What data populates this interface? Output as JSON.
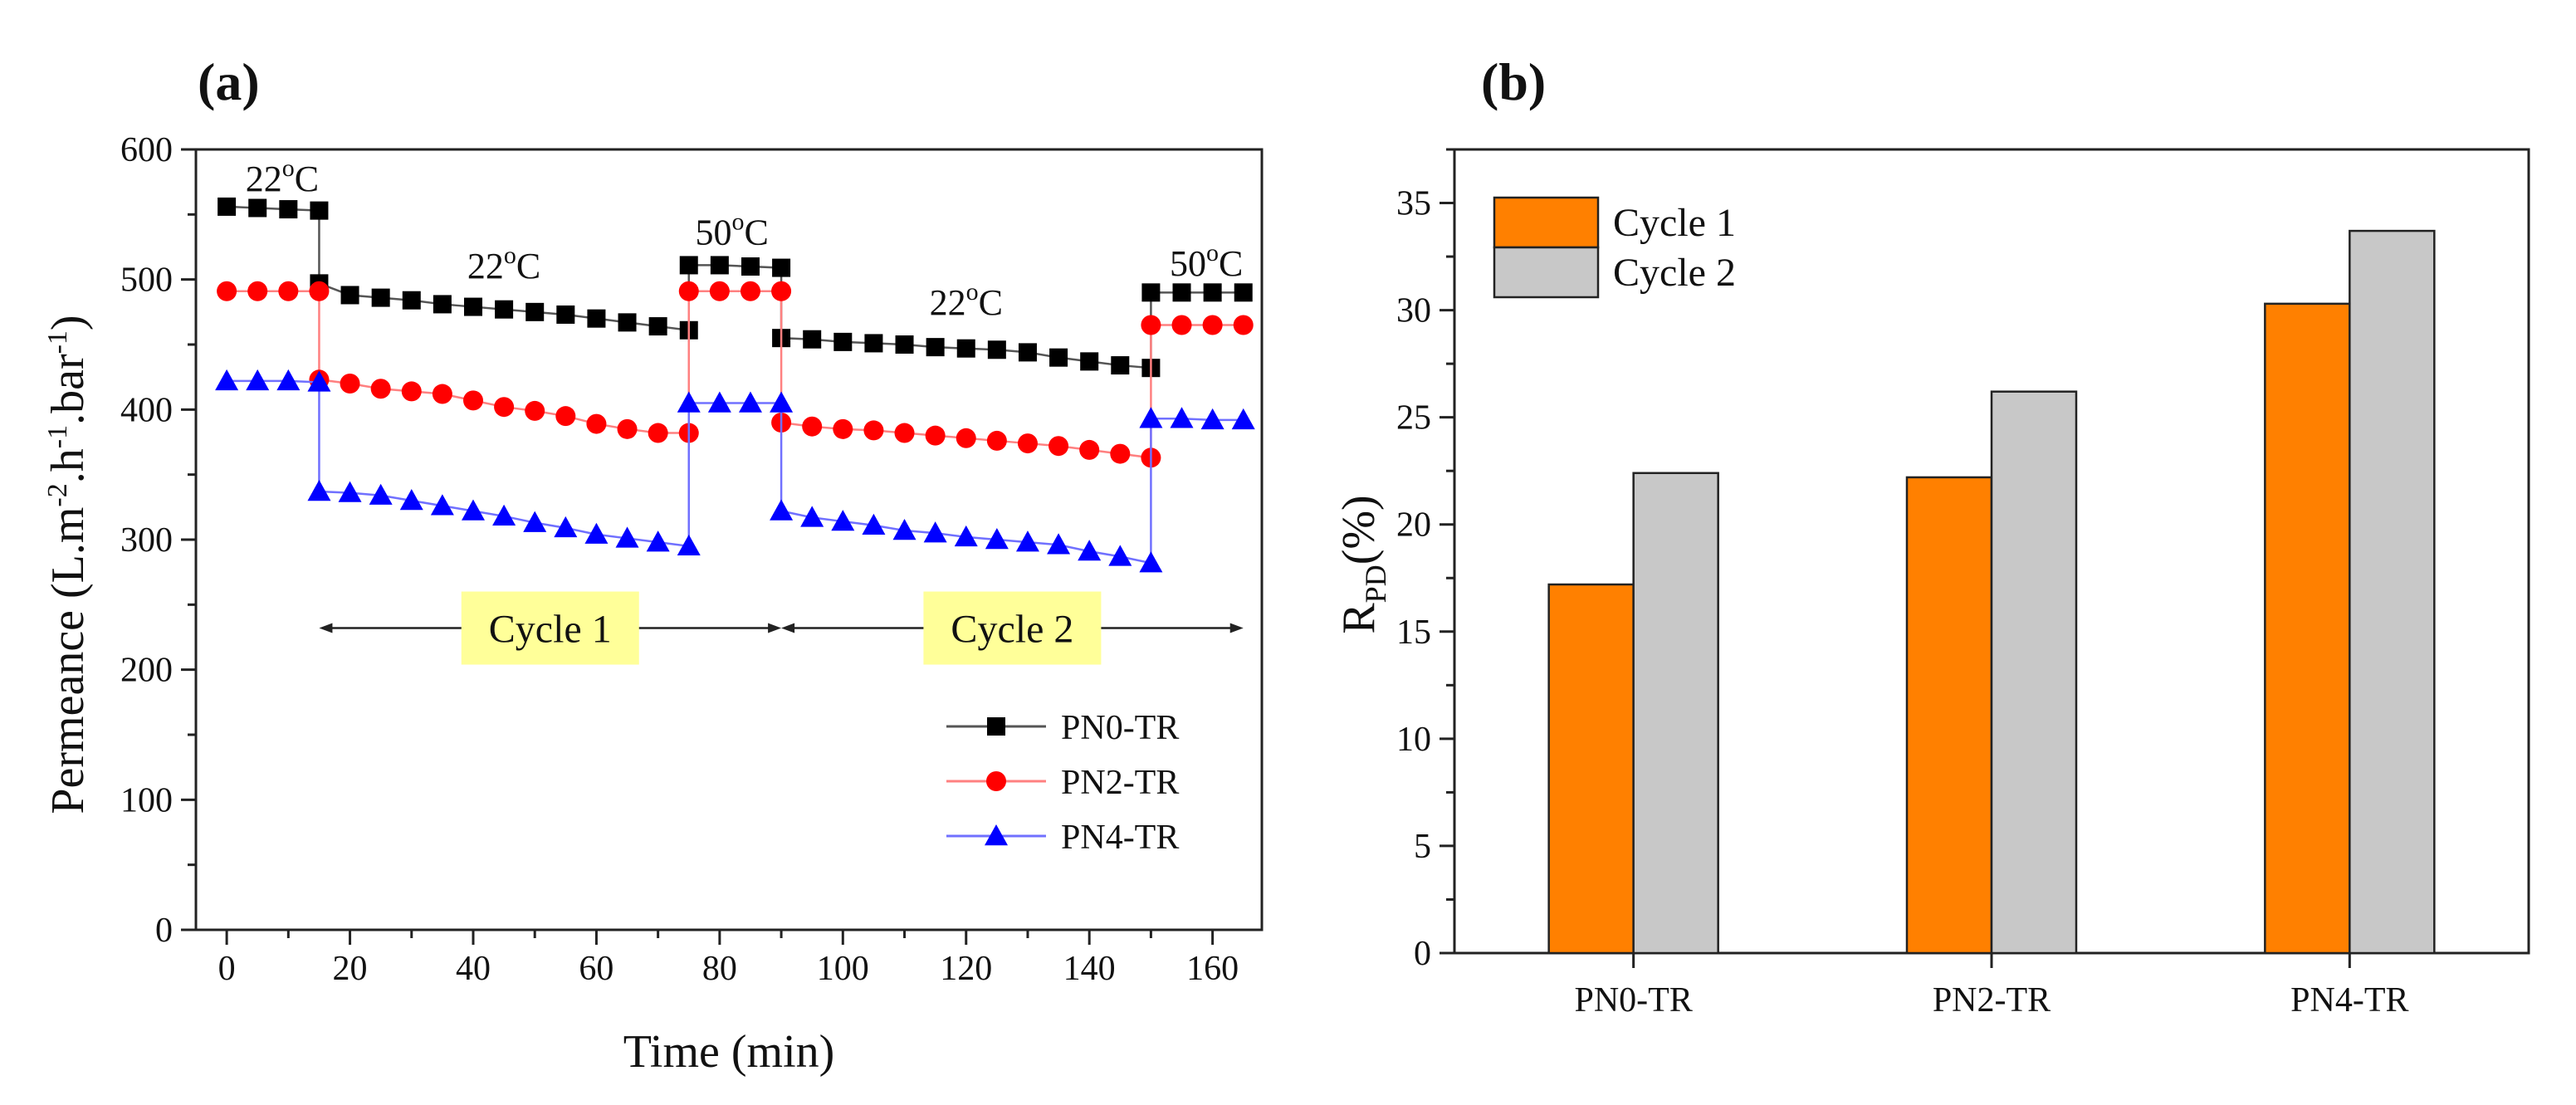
{
  "chart_data": [
    {
      "id": "a",
      "panel_label": "(a)",
      "type": "line",
      "xlabel": "Time (min)",
      "ylabel": "Permeance (L.m-2.h-1.bar-1)",
      "ylabel_parts": {
        "main": "Permeance (L.m",
        "sup1": "-2",
        "mid1": ".h",
        "sup2": "-1",
        "mid2": ".bar",
        "sup3": "-1",
        "end": ")"
      },
      "xlim": [
        -5,
        168
      ],
      "ylim": [
        0,
        600
      ],
      "x_ticks": [
        0,
        20,
        40,
        60,
        80,
        100,
        120,
        140,
        160
      ],
      "y_ticks": [
        0,
        100,
        200,
        300,
        400,
        500,
        600
      ],
      "x_minor_step": 10,
      "y_minor_step": 50,
      "series": [
        {
          "name": "PN0-TR",
          "color": "#000000",
          "line_color": "#555555",
          "marker": "square",
          "x": [
            0,
            5,
            10,
            15,
            15,
            20,
            25,
            30,
            35,
            40,
            45,
            50,
            55,
            60,
            65,
            70,
            75,
            75,
            80,
            85,
            90,
            90,
            95,
            100,
            105,
            110,
            115,
            120,
            125,
            130,
            135,
            140,
            145,
            150,
            150,
            155,
            160,
            165
          ],
          "y": [
            556,
            555,
            554,
            553,
            497,
            488,
            486,
            484,
            481,
            479,
            477,
            475,
            473,
            470,
            467,
            464,
            461,
            511,
            511,
            510,
            509,
            455,
            454,
            452,
            451,
            450,
            448,
            447,
            446,
            444,
            440,
            437,
            434,
            432,
            490,
            490,
            490,
            490
          ]
        },
        {
          "name": "PN2-TR",
          "color": "#ff0000",
          "line_color": "#ff8080",
          "marker": "circle",
          "x": [
            0,
            5,
            10,
            15,
            15,
            20,
            25,
            30,
            35,
            40,
            45,
            50,
            55,
            60,
            65,
            70,
            75,
            75,
            80,
            85,
            90,
            90,
            95,
            100,
            105,
            110,
            115,
            120,
            125,
            130,
            135,
            140,
            145,
            150,
            150,
            155,
            160,
            165
          ],
          "y": [
            491,
            491,
            491,
            491,
            423,
            420,
            416,
            414,
            412,
            407,
            402,
            399,
            395,
            389,
            385,
            382,
            382,
            491,
            491,
            491,
            491,
            390,
            387,
            385,
            384,
            382,
            380,
            378,
            376,
            374,
            372,
            369,
            366,
            363,
            465,
            465,
            465,
            465
          ]
        },
        {
          "name": "PN4-TR",
          "color": "#0000ff",
          "line_color": "#7070ff",
          "marker": "triangle",
          "x": [
            0,
            5,
            10,
            15,
            15,
            20,
            25,
            30,
            35,
            40,
            45,
            50,
            55,
            60,
            65,
            70,
            75,
            75,
            80,
            85,
            90,
            90,
            95,
            100,
            105,
            110,
            115,
            120,
            125,
            130,
            135,
            140,
            145,
            150,
            150,
            155,
            160,
            165
          ],
          "y": [
            422,
            422,
            422,
            421,
            337,
            336,
            334,
            330,
            326,
            322,
            318,
            313,
            309,
            304,
            301,
            298,
            295,
            405,
            405,
            405,
            405,
            322,
            317,
            314,
            311,
            307,
            305,
            302,
            300,
            298,
            296,
            291,
            287,
            282,
            393,
            393,
            392,
            392
          ]
        }
      ],
      "annotations": [
        {
          "text": "22oC",
          "base": "22",
          "sup": "o",
          "unit": "C",
          "x": 9,
          "y": 568
        },
        {
          "text": "22oC",
          "base": "22",
          "sup": "o",
          "unit": "C",
          "x": 45,
          "y": 501
        },
        {
          "text": "50oC",
          "base": "50",
          "sup": "o",
          "unit": "C",
          "x": 82,
          "y": 527
        },
        {
          "text": "22oC",
          "base": "22",
          "sup": "o",
          "unit": "C",
          "x": 120,
          "y": 473
        },
        {
          "text": "50oC",
          "base": "50",
          "sup": "o",
          "unit": "C",
          "x": 159,
          "y": 503
        }
      ],
      "cycles": [
        {
          "label": "Cycle 1",
          "x_start": 15,
          "x_end": 90,
          "y": 232
        },
        {
          "label": "Cycle 2",
          "x_start": 90,
          "x_end": 165,
          "y": 232
        }
      ],
      "cycle_box_color": "#ffff99",
      "legend": {
        "position": "bottom-right",
        "entries": [
          "PN0-TR",
          "PN2-TR",
          "PN4-TR"
        ]
      }
    },
    {
      "id": "b",
      "panel_label": "(b)",
      "type": "bar",
      "ylabel": "RPD(%)",
      "ylabel_parts": {
        "main": "R",
        "sub": "PD",
        "end": "(%)"
      },
      "categories": [
        "PN0-TR",
        "PN2-TR",
        "PN4-TR"
      ],
      "ylim": [
        0,
        37.5
      ],
      "y_ticks": [
        0,
        5,
        10,
        15,
        20,
        25,
        30,
        35
      ],
      "y_minor_step": 2.5,
      "series": [
        {
          "name": "Cycle 1",
          "color": "#ff8000",
          "values": [
            17.2,
            22.2,
            30.3
          ]
        },
        {
          "name": "Cycle 2",
          "color": "#c8c8c8",
          "values": [
            22.4,
            26.2,
            33.7
          ]
        }
      ],
      "legend": {
        "position": "top-left",
        "entries": [
          "Cycle 1",
          "Cycle 2"
        ]
      }
    }
  ]
}
